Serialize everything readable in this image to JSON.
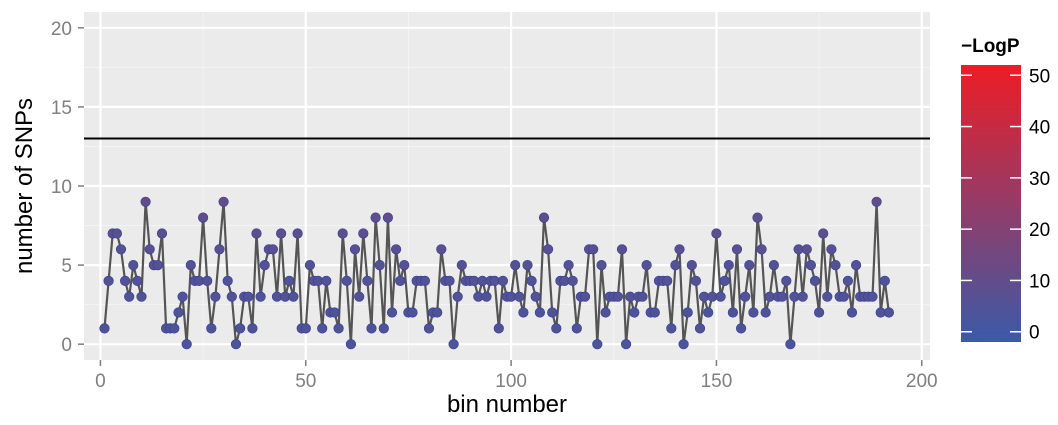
{
  "chart_data": {
    "type": "line",
    "xlabel": "bin number",
    "ylabel": "number of SNPs",
    "xlim": [
      -4,
      202
    ],
    "ylim": [
      -1,
      21
    ],
    "x_ticks": [
      0,
      50,
      100,
      150,
      200
    ],
    "y_ticks": [
      0,
      5,
      10,
      15,
      20
    ],
    "x_tick_labels": [
      "0",
      "50",
      "100",
      "150",
      "200"
    ],
    "y_tick_labels": [
      "0",
      "5",
      "10",
      "15",
      "20"
    ],
    "threshold": 13,
    "grid": true,
    "legend": {
      "title": "−LogP",
      "placement": "right",
      "range": [
        -2,
        52
      ],
      "ticks": [
        0,
        10,
        20,
        30,
        40,
        50
      ],
      "tick_labels": [
        "0",
        "10",
        "20",
        "30",
        "40",
        "50"
      ],
      "color_low": "#3a5aa8",
      "color_high": "#ee1c25"
    },
    "colors": {
      "panel": "#ebebeb",
      "grid": "#ffffff",
      "line": "#555555",
      "point": "#4a4fa6",
      "threshold_line": "#000000"
    },
    "series": [
      {
        "x": [
          1,
          2,
          3,
          4,
          5,
          6,
          7,
          8,
          9,
          10,
          11,
          12,
          13,
          14,
          15,
          16,
          17,
          18,
          19,
          20,
          21,
          22,
          23,
          24,
          25,
          26,
          27,
          28,
          29,
          30,
          31,
          32,
          33,
          34,
          35,
          36,
          37,
          38,
          39,
          40,
          41,
          42,
          43,
          44,
          45,
          46,
          47,
          48,
          49,
          50,
          51,
          52,
          53,
          54,
          55,
          56,
          57,
          58,
          59,
          60,
          61,
          62,
          63,
          64,
          65,
          66,
          67,
          68,
          69,
          70,
          71,
          72,
          73,
          74,
          75,
          76,
          77,
          78,
          79,
          80,
          81,
          82,
          83,
          84,
          85,
          86,
          87,
          88,
          89,
          90,
          91,
          92,
          93,
          94,
          95,
          96,
          97,
          98,
          99,
          100,
          101,
          102,
          103,
          104,
          105,
          106,
          107,
          108,
          109,
          110,
          111,
          112,
          113,
          114,
          115,
          116,
          117,
          118,
          119,
          120,
          121,
          122,
          123,
          124,
          125,
          126,
          127,
          128,
          129,
          130,
          131,
          132,
          133,
          134,
          135,
          136,
          137,
          138,
          139,
          140,
          141,
          142,
          143,
          144,
          145,
          146,
          147,
          148,
          149,
          150,
          151,
          152,
          153,
          154,
          155,
          156,
          157,
          158,
          159,
          160,
          161,
          162,
          163,
          164,
          165,
          166,
          167,
          168,
          169,
          170,
          171,
          172,
          173,
          174,
          175,
          176,
          177,
          178,
          179,
          180,
          181,
          182,
          183,
          184,
          185,
          186,
          187,
          188,
          189,
          190,
          191,
          192
        ],
        "y": [
          1,
          4,
          7,
          7,
          6,
          4,
          3,
          5,
          4,
          3,
          9,
          6,
          5,
          5,
          7,
          1,
          1,
          1,
          2,
          3,
          0,
          5,
          4,
          4,
          8,
          4,
          1,
          3,
          6,
          9,
          4,
          3,
          0,
          1,
          3,
          3,
          1,
          7,
          3,
          5,
          6,
          6,
          3,
          7,
          3,
          4,
          3,
          7,
          1,
          1,
          5,
          4,
          4,
          1,
          4,
          2,
          2,
          1,
          7,
          4,
          0,
          6,
          3,
          7,
          4,
          1,
          8,
          5,
          1,
          8,
          2,
          6,
          4,
          5,
          2,
          2,
          4,
          4,
          4,
          1,
          2,
          2,
          6,
          4,
          4,
          0,
          3,
          5,
          4,
          4,
          4,
          3,
          4,
          3,
          4,
          4,
          1,
          4,
          3,
          3,
          5,
          3,
          2,
          5,
          4,
          3,
          2,
          8,
          6,
          2,
          1,
          4,
          4,
          5,
          4,
          1,
          3,
          3,
          6,
          6,
          0,
          5,
          2,
          3,
          3,
          3,
          6,
          0,
          3,
          2,
          3,
          3,
          5,
          2,
          2,
          4,
          4,
          4,
          1,
          5,
          6,
          0,
          2,
          5,
          4,
          1,
          3,
          2,
          3,
          7,
          3,
          4,
          5,
          2,
          6,
          1,
          3,
          5,
          2,
          8,
          6,
          2,
          3,
          5,
          3,
          3,
          4,
          0,
          3,
          6,
          3,
          6,
          5,
          4,
          2,
          7,
          3,
          6,
          5,
          3,
          3,
          4,
          2,
          5,
          3,
          3,
          3,
          3,
          9,
          2,
          4,
          2
        ],
        "neglogp": [
          4,
          5,
          7,
          7,
          6,
          5,
          5,
          6,
          5,
          5,
          10,
          7,
          6,
          6,
          7,
          4,
          4,
          4,
          4,
          5,
          3,
          6,
          5,
          5,
          9,
          5,
          4,
          5,
          7,
          10,
          5,
          5,
          3,
          4,
          5,
          5,
          4,
          8,
          5,
          6,
          7,
          7,
          5,
          8,
          5,
          5,
          5,
          8,
          4,
          4,
          6,
          5,
          5,
          4,
          5,
          4,
          4,
          4,
          8,
          5,
          3,
          7,
          5,
          8,
          5,
          4,
          9,
          6,
          4,
          9,
          4,
          7,
          5,
          6,
          4,
          4,
          5,
          5,
          5,
          4,
          4,
          4,
          7,
          5,
          5,
          3,
          5,
          6,
          5,
          5,
          5,
          5,
          5,
          5,
          5,
          5,
          4,
          5,
          5,
          5,
          6,
          5,
          4,
          6,
          5,
          5,
          4,
          9,
          7,
          4,
          4,
          5,
          5,
          6,
          5,
          4,
          5,
          5,
          7,
          7,
          3,
          6,
          4,
          5,
          5,
          5,
          7,
          3,
          5,
          4,
          5,
          5,
          6,
          4,
          4,
          5,
          5,
          5,
          4,
          6,
          7,
          3,
          4,
          6,
          5,
          4,
          5,
          4,
          5,
          8,
          5,
          5,
          6,
          4,
          7,
          4,
          5,
          6,
          4,
          9,
          7,
          4,
          5,
          6,
          5,
          5,
          5,
          3,
          5,
          7,
          5,
          7,
          6,
          5,
          4,
          8,
          5,
          7,
          6,
          5,
          5,
          5,
          4,
          6,
          5,
          5,
          5,
          5,
          10,
          4,
          5,
          4
        ]
      }
    ]
  }
}
